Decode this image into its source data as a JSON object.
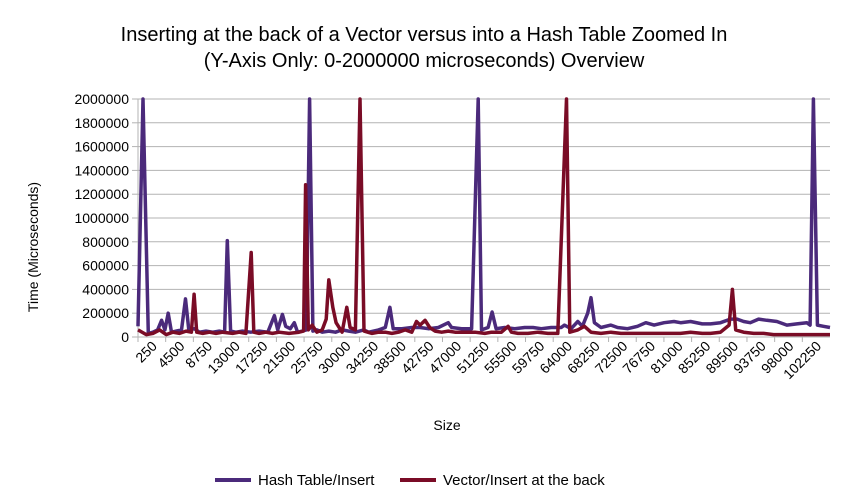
{
  "chart_data": {
    "type": "line",
    "title_line1": "Inserting at the back of a Vector versus into a Hash Table Zoomed In",
    "title_line2": "(Y-Axis Only: 0-2000000 microseconds) Overview",
    "xlabel": "Size",
    "ylabel": "Time (Microseconds)",
    "ylim": [
      0,
      2000000
    ],
    "yticks": [
      0,
      200000,
      400000,
      600000,
      800000,
      1000000,
      1200000,
      1400000,
      1600000,
      1800000,
      2000000
    ],
    "xticks": [
      "250",
      "4500",
      "8750",
      "13000",
      "17250",
      "21500",
      "25750",
      "30000",
      "34250",
      "38500",
      "42750",
      "47000",
      "51250",
      "55500",
      "59750",
      "64000",
      "68250",
      "72500",
      "76750",
      "81000",
      "85250",
      "89500",
      "93750",
      "98000",
      "102250"
    ],
    "xlim": [
      250,
      104500
    ],
    "grid": "horizontal",
    "legend_position": "bottom",
    "series": [
      {
        "name": "Hash Table/Insert",
        "color": "#4b2a7b",
        "points": [
          [
            250,
            90000
          ],
          [
            1000,
            2000000
          ],
          [
            1800,
            30000
          ],
          [
            2500,
            40000
          ],
          [
            3200,
            60000
          ],
          [
            3800,
            140000
          ],
          [
            4300,
            60000
          ],
          [
            4800,
            200000
          ],
          [
            5300,
            40000
          ],
          [
            6000,
            50000
          ],
          [
            6800,
            60000
          ],
          [
            7400,
            320000
          ],
          [
            7900,
            60000
          ],
          [
            8750,
            70000
          ],
          [
            9500,
            40000
          ],
          [
            10500,
            50000
          ],
          [
            11500,
            40000
          ],
          [
            12500,
            50000
          ],
          [
            13300,
            40000
          ],
          [
            13700,
            810000
          ],
          [
            14200,
            50000
          ],
          [
            15000,
            40000
          ],
          [
            16000,
            50000
          ],
          [
            17250,
            40000
          ],
          [
            18500,
            50000
          ],
          [
            19800,
            40000
          ],
          [
            20800,
            180000
          ],
          [
            21300,
            60000
          ],
          [
            22000,
            190000
          ],
          [
            22500,
            90000
          ],
          [
            23200,
            70000
          ],
          [
            23800,
            120000
          ],
          [
            24300,
            40000
          ],
          [
            25000,
            50000
          ],
          [
            25600,
            60000
          ],
          [
            26100,
            2000000
          ],
          [
            26600,
            50000
          ],
          [
            27200,
            60000
          ],
          [
            28000,
            40000
          ],
          [
            29000,
            50000
          ],
          [
            30000,
            40000
          ],
          [
            31000,
            60000
          ],
          [
            32000,
            50000
          ],
          [
            33000,
            40000
          ],
          [
            34250,
            60000
          ],
          [
            35000,
            40000
          ],
          [
            36500,
            60000
          ],
          [
            37500,
            80000
          ],
          [
            38200,
            250000
          ],
          [
            38700,
            70000
          ],
          [
            40000,
            70000
          ],
          [
            41500,
            80000
          ],
          [
            42750,
            80000
          ],
          [
            44000,
            70000
          ],
          [
            45500,
            80000
          ],
          [
            47000,
            120000
          ],
          [
            47500,
            80000
          ],
          [
            49000,
            70000
          ],
          [
            50500,
            70000
          ],
          [
            51500,
            2000000
          ],
          [
            52000,
            60000
          ],
          [
            53000,
            80000
          ],
          [
            53600,
            210000
          ],
          [
            54200,
            70000
          ],
          [
            55500,
            80000
          ],
          [
            57000,
            70000
          ],
          [
            58500,
            80000
          ],
          [
            59750,
            80000
          ],
          [
            61000,
            70000
          ],
          [
            62500,
            80000
          ],
          [
            64000,
            80000
          ],
          [
            64500,
            100000
          ],
          [
            65500,
            70000
          ],
          [
            66500,
            130000
          ],
          [
            67200,
            90000
          ],
          [
            68000,
            200000
          ],
          [
            68500,
            330000
          ],
          [
            69000,
            120000
          ],
          [
            70000,
            80000
          ],
          [
            71500,
            100000
          ],
          [
            72500,
            80000
          ],
          [
            74000,
            70000
          ],
          [
            75500,
            90000
          ],
          [
            76750,
            120000
          ],
          [
            78000,
            100000
          ],
          [
            79500,
            120000
          ],
          [
            81000,
            130000
          ],
          [
            82000,
            120000
          ],
          [
            83500,
            130000
          ],
          [
            85250,
            110000
          ],
          [
            86500,
            110000
          ],
          [
            88000,
            120000
          ],
          [
            89500,
            150000
          ],
          [
            90500,
            150000
          ],
          [
            91500,
            130000
          ],
          [
            92500,
            120000
          ],
          [
            93750,
            150000
          ],
          [
            95000,
            140000
          ],
          [
            96500,
            130000
          ],
          [
            98000,
            100000
          ],
          [
            99500,
            110000
          ],
          [
            101000,
            120000
          ],
          [
            101500,
            100000
          ],
          [
            102000,
            2000000
          ],
          [
            102600,
            100000
          ],
          [
            103500,
            90000
          ],
          [
            104500,
            80000
          ]
        ]
      },
      {
        "name": "Vector/Insert at the back",
        "color": "#7a0c26",
        "points": [
          [
            250,
            60000
          ],
          [
            1500,
            20000
          ],
          [
            2500,
            30000
          ],
          [
            3500,
            60000
          ],
          [
            4500,
            20000
          ],
          [
            5500,
            40000
          ],
          [
            6500,
            30000
          ],
          [
            7500,
            50000
          ],
          [
            8300,
            40000
          ],
          [
            8700,
            360000
          ],
          [
            9100,
            40000
          ],
          [
            10000,
            30000
          ],
          [
            11000,
            40000
          ],
          [
            12000,
            30000
          ],
          [
            13000,
            40000
          ],
          [
            14500,
            30000
          ],
          [
            15500,
            40000
          ],
          [
            16500,
            30000
          ],
          [
            17300,
            710000
          ],
          [
            17700,
            40000
          ],
          [
            18500,
            30000
          ],
          [
            19500,
            40000
          ],
          [
            20500,
            30000
          ],
          [
            21500,
            40000
          ],
          [
            23000,
            30000
          ],
          [
            24500,
            40000
          ],
          [
            25200,
            50000
          ],
          [
            25500,
            1280000
          ],
          [
            25900,
            60000
          ],
          [
            26500,
            100000
          ],
          [
            27200,
            40000
          ],
          [
            28000,
            60000
          ],
          [
            28600,
            150000
          ],
          [
            29000,
            480000
          ],
          [
            29600,
            250000
          ],
          [
            30100,
            120000
          ],
          [
            31000,
            40000
          ],
          [
            31700,
            250000
          ],
          [
            32200,
            80000
          ],
          [
            33000,
            60000
          ],
          [
            33700,
            2000000
          ],
          [
            34300,
            50000
          ],
          [
            35500,
            30000
          ],
          [
            36500,
            40000
          ],
          [
            37500,
            40000
          ],
          [
            38500,
            30000
          ],
          [
            39500,
            40000
          ],
          [
            40500,
            60000
          ],
          [
            41500,
            40000
          ],
          [
            42200,
            130000
          ],
          [
            42750,
            100000
          ],
          [
            43500,
            140000
          ],
          [
            44200,
            80000
          ],
          [
            45000,
            50000
          ],
          [
            46000,
            40000
          ],
          [
            47000,
            50000
          ],
          [
            48000,
            40000
          ],
          [
            49500,
            40000
          ],
          [
            51000,
            40000
          ],
          [
            52500,
            30000
          ],
          [
            53500,
            40000
          ],
          [
            55000,
            40000
          ],
          [
            56000,
            90000
          ],
          [
            56500,
            40000
          ],
          [
            57500,
            30000
          ],
          [
            59000,
            30000
          ],
          [
            60500,
            40000
          ],
          [
            62000,
            30000
          ],
          [
            63500,
            30000
          ],
          [
            64800,
            2000000
          ],
          [
            65300,
            40000
          ],
          [
            66500,
            60000
          ],
          [
            67500,
            90000
          ],
          [
            68500,
            40000
          ],
          [
            70000,
            30000
          ],
          [
            71500,
            40000
          ],
          [
            73000,
            30000
          ],
          [
            74500,
            30000
          ],
          [
            76000,
            30000
          ],
          [
            77500,
            30000
          ],
          [
            79000,
            30000
          ],
          [
            80500,
            30000
          ],
          [
            82000,
            30000
          ],
          [
            83500,
            40000
          ],
          [
            85250,
            30000
          ],
          [
            86500,
            30000
          ],
          [
            88000,
            40000
          ],
          [
            89300,
            100000
          ],
          [
            89800,
            400000
          ],
          [
            90300,
            60000
          ],
          [
            91500,
            40000
          ],
          [
            93000,
            30000
          ],
          [
            94500,
            30000
          ],
          [
            96000,
            20000
          ],
          [
            98000,
            20000
          ],
          [
            100000,
            20000
          ],
          [
            102250,
            20000
          ],
          [
            104500,
            20000
          ]
        ]
      }
    ]
  }
}
